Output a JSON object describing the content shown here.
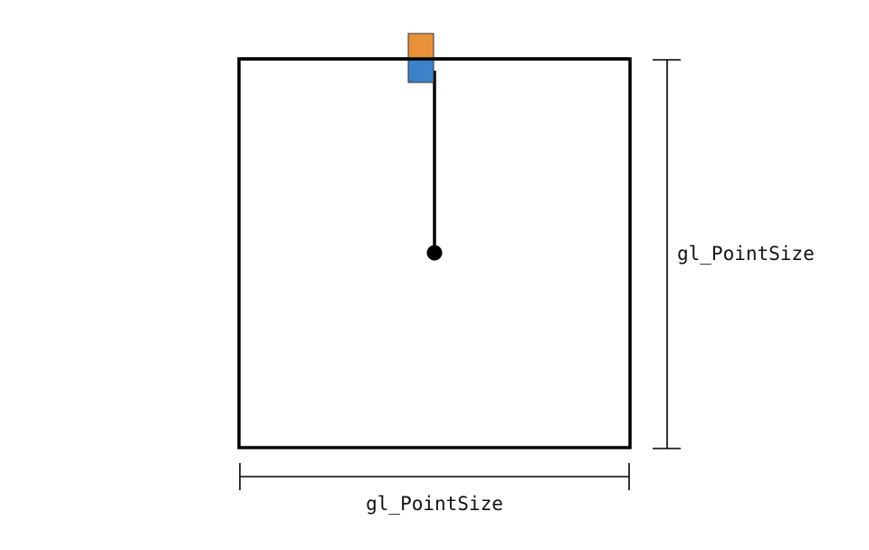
{
  "diagram": {
    "labels": {
      "height": "gl_PointSize",
      "width": "gl_PointSize"
    },
    "colors": {
      "stroke": "#000000",
      "orange_square": "#E8913A",
      "blue_square": "#3B82C8",
      "center_dot": "#000000",
      "background": "#FFFFFF"
    }
  }
}
